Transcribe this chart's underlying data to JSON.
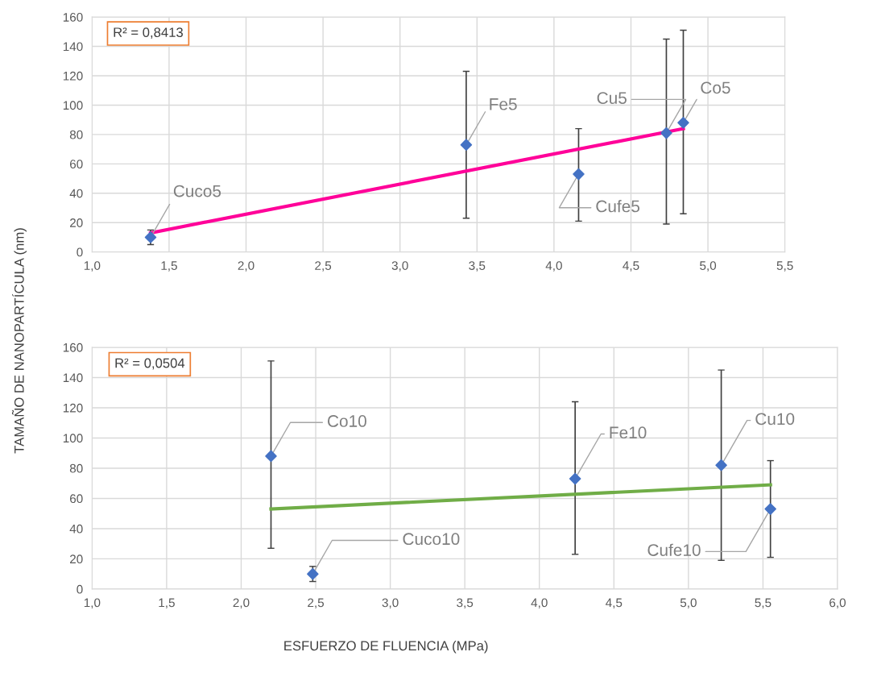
{
  "chart_data": [
    {
      "type": "scatter",
      "ylabel": "TAMAÑO DE NANOPARTÍCULA (nm)",
      "x": [
        1.38,
        3.43,
        4.16,
        4.73,
        4.84
      ],
      "series": [
        {
          "color": "#4472c4",
          "marker": "diamond",
          "values": [
            10,
            73,
            53,
            81,
            88
          ],
          "errors": [
            [
              5,
              15
            ],
            [
              23,
              123
            ],
            [
              21,
              84
            ],
            [
              19,
              145
            ],
            [
              26,
              151
            ]
          ]
        },
        {
          "type": "line",
          "color": "#ff0099",
          "x": [
            1.38,
            4.84
          ],
          "values": [
            13,
            84
          ]
        }
      ],
      "annotations": [
        "R² = 0,8413",
        {
          "text": "Cuco5",
          "x": 1.38,
          "y": 10
        },
        {
          "text": "Fe5",
          "x": 3.43,
          "y": 73
        },
        {
          "text": "Cufe5",
          "x": 4.16,
          "y": 53
        },
        {
          "text": "Cu5",
          "x": 4.73,
          "y": 81
        },
        {
          "text": "Co5",
          "x": 4.84,
          "y": 88
        }
      ],
      "xlim": [
        1.0,
        5.5
      ],
      "xticks": [
        {
          "value": 1.0,
          "label": "1,0"
        },
        {
          "value": 1.5,
          "label": "1,5"
        },
        {
          "value": 2.0,
          "label": "2,0"
        },
        {
          "value": 2.5,
          "label": "2,5"
        },
        {
          "value": 3.0,
          "label": "3,0"
        },
        {
          "value": 3.5,
          "label": "3,5"
        },
        {
          "value": 4.0,
          "label": "4,0"
        },
        {
          "value": 4.5,
          "label": "4,5"
        },
        {
          "value": 5.0,
          "label": "5,0"
        },
        {
          "value": 5.5,
          "label": "5,5"
        }
      ],
      "ylim": [
        0,
        160
      ],
      "yticks": [
        0,
        20,
        40,
        60,
        80,
        100,
        120,
        140,
        160
      ],
      "grid": true
    },
    {
      "type": "scatter",
      "xlabel": "ESFUERZO DE FLUENCIA (MPa)",
      "x": [
        2.2,
        2.48,
        4.24,
        5.22,
        5.55
      ],
      "series": [
        {
          "color": "#4472c4",
          "marker": "diamond",
          "values": [
            88,
            10,
            73,
            82,
            53
          ],
          "errors": [
            [
              27,
              151
            ],
            [
              5,
              15
            ],
            [
              23,
              124
            ],
            [
              19,
              145
            ],
            [
              21,
              85
            ]
          ]
        },
        {
          "type": "line",
          "color": "#70ad47",
          "x": [
            2.2,
            5.55
          ],
          "values": [
            53,
            69
          ]
        }
      ],
      "annotations": [
        "R² = 0,0504",
        {
          "text": "Co10",
          "x": 2.2,
          "y": 88
        },
        {
          "text": "Cuco10",
          "x": 2.48,
          "y": 10
        },
        {
          "text": "Fe10",
          "x": 4.24,
          "y": 73
        },
        {
          "text": "Cu10",
          "x": 5.22,
          "y": 82
        },
        {
          "text": "Cufe10",
          "x": 5.55,
          "y": 53
        }
      ],
      "xlim": [
        1.0,
        6.0
      ],
      "xticks": [
        {
          "value": 1.0,
          "label": "1,0"
        },
        {
          "value": 1.5,
          "label": "1,5"
        },
        {
          "value": 2.0,
          "label": "2,0"
        },
        {
          "value": 2.5,
          "label": "2,5"
        },
        {
          "value": 3.0,
          "label": "3,0"
        },
        {
          "value": 3.5,
          "label": "3,5"
        },
        {
          "value": 4.0,
          "label": "4,0"
        },
        {
          "value": 4.5,
          "label": "4,5"
        },
        {
          "value": 5.0,
          "label": "5,0"
        },
        {
          "value": 5.5,
          "label": "5,5"
        },
        {
          "value": 6.0,
          "label": "6,0"
        }
      ],
      "ylim": [
        0,
        160
      ],
      "yticks": [
        0,
        20,
        40,
        60,
        80,
        100,
        120,
        140,
        160
      ],
      "grid": true
    }
  ]
}
